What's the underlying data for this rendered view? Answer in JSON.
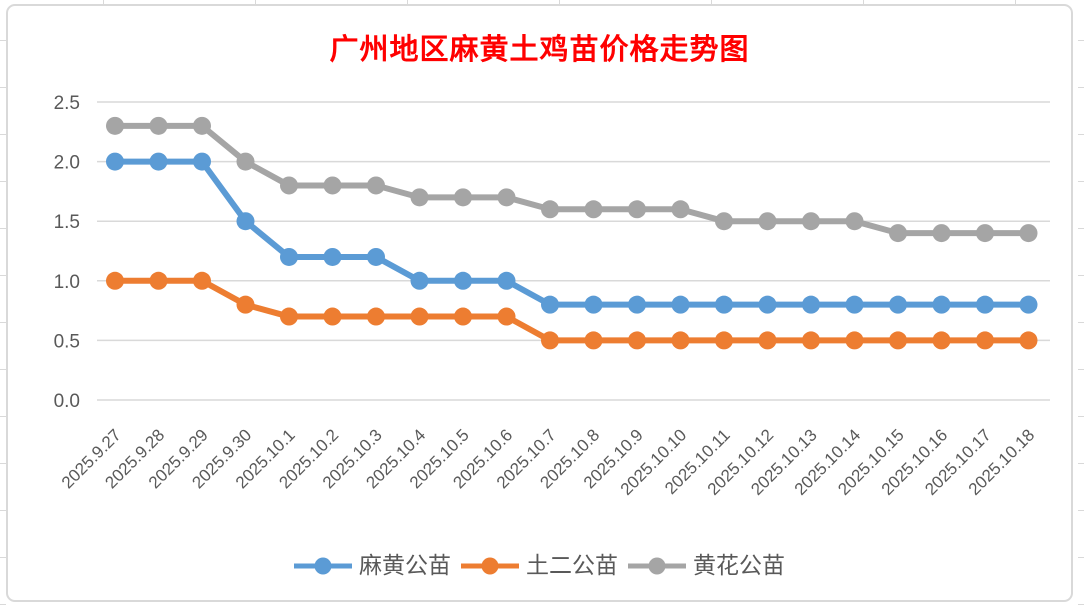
{
  "chart_data": {
    "type": "line",
    "title": "广州地区麻黄土鸡苗价格走势图",
    "categories": [
      "2025.9.27",
      "2025.9.28",
      "2025.9.29",
      "2025.9.30",
      "2025.10.1",
      "2025.10.2",
      "2025.10.3",
      "2025.10.4",
      "2025.10.5",
      "2025.10.6",
      "2025.10.7",
      "2025.10.8",
      "2025.10.9",
      "2025.10.10",
      "2025.10.11",
      "2025.10.12",
      "2025.10.13",
      "2025.10.14",
      "2025.10.15",
      "2025.10.16",
      "2025.10.17",
      "2025.10.18"
    ],
    "series": [
      {
        "name": "麻黄公苗",
        "color": "#5B9BD5",
        "values": [
          2.0,
          2.0,
          2.0,
          1.5,
          1.2,
          1.2,
          1.2,
          1.0,
          1.0,
          1.0,
          0.8,
          0.8,
          0.8,
          0.8,
          0.8,
          0.8,
          0.8,
          0.8,
          0.8,
          0.8,
          0.8,
          0.8
        ]
      },
      {
        "name": "土二公苗",
        "color": "#ED7D31",
        "values": [
          1.0,
          1.0,
          1.0,
          0.8,
          0.7,
          0.7,
          0.7,
          0.7,
          0.7,
          0.7,
          0.5,
          0.5,
          0.5,
          0.5,
          0.5,
          0.5,
          0.5,
          0.5,
          0.5,
          0.5,
          0.5,
          0.5
        ]
      },
      {
        "name": "黄花公苗",
        "color": "#A5A5A5",
        "values": [
          2.3,
          2.3,
          2.3,
          2.0,
          1.8,
          1.8,
          1.8,
          1.7,
          1.7,
          1.7,
          1.6,
          1.6,
          1.6,
          1.6,
          1.5,
          1.5,
          1.5,
          1.5,
          1.4,
          1.4,
          1.4,
          1.4
        ]
      }
    ],
    "xlabel": "",
    "ylabel": "",
    "ylim": [
      0,
      2.5
    ],
    "y_ticks": [
      "0.0",
      "0.5",
      "1.0",
      "1.5",
      "2.0",
      "2.5"
    ],
    "grid": "horizontal-only",
    "legend_position": "bottom",
    "colors": {
      "title_text": "#FF0000",
      "axis_label_text": "#595959",
      "legend_text": "#595959",
      "gridline": "#D9D9D9",
      "chart_border": "#D9D9D9",
      "background": "#FFFFFF"
    }
  }
}
